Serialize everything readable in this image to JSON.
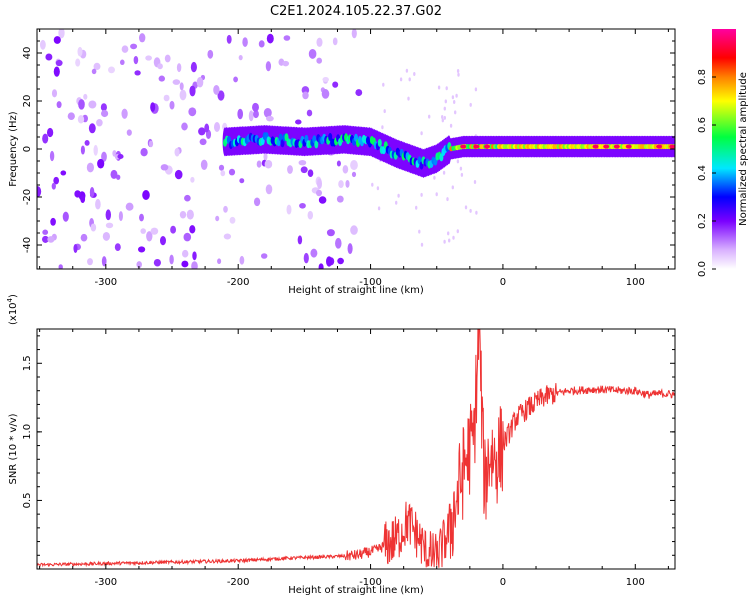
{
  "figure_title": "C2E1.2024.105.22.37.G02",
  "chart_data": [
    {
      "type": "heatmap",
      "panel": "spectrogram",
      "xlabel": "Height of straight line (km)",
      "ylabel": "Frequency (Hz)",
      "xlim": [
        -352,
        130
      ],
      "ylim": [
        -50,
        50
      ],
      "xticks": [
        -300,
        -200,
        -100,
        0,
        100
      ],
      "yticks": [
        -40,
        -20,
        0,
        20,
        40
      ],
      "colorbar": {
        "label": "Normalized spectral amplitude",
        "range": [
          0,
          1
        ],
        "ticks": [
          0.0,
          0.2,
          0.4,
          0.6,
          0.8
        ],
        "colormap": [
          "#ffffff",
          "#d8b0ff",
          "#7a00ff",
          "#0000ff",
          "#00e8ff",
          "#00ff40",
          "#ffff00",
          "#ff8000",
          "#ff0000",
          "#ff00a0"
        ]
      },
      "ridge": {
        "description": "carrier line near 0 Hz",
        "points": [
          [
            -210,
            3
          ],
          [
            -180,
            4
          ],
          [
            -150,
            3
          ],
          [
            -120,
            4
          ],
          [
            -100,
            3
          ],
          [
            -80,
            -2
          ],
          [
            -70,
            -4
          ],
          [
            -60,
            -6
          ],
          [
            -50,
            -4
          ],
          [
            -40,
            0
          ],
          [
            -30,
            1
          ],
          [
            0,
            1
          ],
          [
            50,
            1
          ],
          [
            100,
            1
          ],
          [
            130,
            1
          ]
        ],
        "peak_amplitude": 0.95
      },
      "noise_region_x": [
        -352,
        -108
      ]
    },
    {
      "type": "line",
      "panel": "snr",
      "xlabel": "Height of straight line (km)",
      "ylabel": "SNR (10 * v/v)",
      "yscale_label": "(x10",
      "yscale_exponent": "4",
      "xlim": [
        -352,
        130
      ],
      "ylim": [
        0,
        1.75
      ],
      "xticks": [
        -300,
        -200,
        -100,
        0,
        100
      ],
      "yticks": [
        0.5,
        1.0,
        1.5
      ],
      "yticklabels": [
        "0.5",
        "1.0",
        "1.5"
      ],
      "color": "#ee3333",
      "series": [
        {
          "x": [
            -352,
            -300,
            -250,
            -200,
            -160,
            -130,
            -110,
            -95,
            -80,
            -72,
            -65,
            -58,
            -50,
            -42,
            -35,
            -28,
            -22,
            -18,
            -14,
            -10,
            -5,
            0,
            10,
            20,
            30,
            40,
            50,
            70,
            90,
            100,
            110,
            120,
            130
          ],
          "y": [
            0.03,
            0.04,
            0.05,
            0.06,
            0.08,
            0.09,
            0.1,
            0.14,
            0.22,
            0.35,
            0.25,
            0.12,
            0.08,
            0.25,
            0.5,
            0.8,
            0.95,
            1.75,
            0.6,
            0.85,
            0.8,
            0.9,
            1.1,
            1.18,
            1.25,
            1.28,
            1.3,
            1.31,
            1.3,
            1.3,
            1.27,
            1.28,
            1.27
          ]
        }
      ]
    }
  ]
}
